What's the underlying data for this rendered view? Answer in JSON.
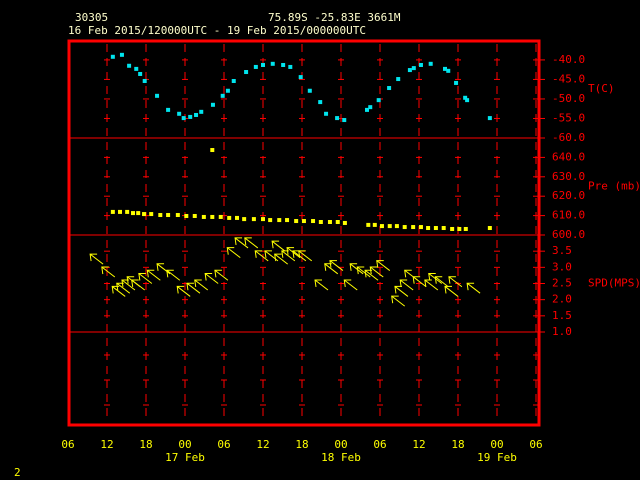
{
  "header": {
    "station": "30305",
    "location": "75.89S  -25.83E  3661M",
    "period": "16 Feb 2015/120000UTC - 19 Feb 2015/000000UTC"
  },
  "page_number": "2",
  "x_axis": {
    "xlim": [
      6,
      78
    ],
    "xticks": [
      {
        "value": 6,
        "label": "06"
      },
      {
        "value": 12,
        "label": "12"
      },
      {
        "value": 18,
        "label": "18"
      },
      {
        "value": 24,
        "label": "00"
      },
      {
        "value": 30,
        "label": "06"
      },
      {
        "value": 36,
        "label": "12"
      },
      {
        "value": 42,
        "label": "18"
      },
      {
        "value": 48,
        "label": "00"
      },
      {
        "value": 54,
        "label": "06"
      },
      {
        "value": 60,
        "label": "12"
      },
      {
        "value": 66,
        "label": "18"
      },
      {
        "value": 72,
        "label": "00"
      },
      {
        "value": 78,
        "label": "06"
      }
    ],
    "date_ticks": [
      {
        "value": 24,
        "label": "17 Feb"
      },
      {
        "value": 48,
        "label": "18 Feb"
      },
      {
        "value": 72,
        "label": "19 Feb"
      }
    ]
  },
  "chart_data": [
    {
      "type": "scatter",
      "y_label": "T(C)",
      "color": "#00e5ee",
      "x": [
        12.9,
        14.3,
        15.4,
        16.5,
        17.1,
        17.8,
        19.7,
        21.4,
        23.1,
        23.8,
        24.8,
        25.7,
        26.5,
        28.3,
        29.8,
        30.6,
        31.5,
        33.4,
        34.9,
        36.0,
        37.5,
        39.1,
        40.2,
        41.8,
        43.2,
        44.8,
        45.7,
        47.4,
        48.5,
        52.0,
        52.5,
        53.8,
        55.4,
        56.8,
        58.6,
        59.2,
        60.3,
        61.8,
        64.0,
        64.5,
        65.7,
        67.1,
        67.4,
        70.9
      ],
      "values": [
        -39.2,
        -38.7,
        -41.5,
        -42.3,
        -43.6,
        -45.4,
        -49.2,
        -52.8,
        -53.8,
        -54.9,
        -54.6,
        -54.1,
        -53.3,
        -51.5,
        -49.2,
        -47.9,
        -45.4,
        -43.1,
        -41.8,
        -41.3,
        -41.0,
        -41.3,
        -41.8,
        -44.4,
        -47.9,
        -50.8,
        -53.8,
        -54.9,
        -55.4,
        -52.8,
        -52.1,
        -50.3,
        -47.2,
        -44.9,
        -42.6,
        -42.1,
        -41.3,
        -41.0,
        -42.3,
        -42.8,
        -45.9,
        -49.7,
        -50.3,
        -54.9
      ],
      "ylim": [
        -60,
        -34.9
      ],
      "yticks": [
        {
          "value": -40,
          "label": "-40.0"
        },
        {
          "value": -45,
          "label": "-45.0"
        },
        {
          "value": -50,
          "label": "-50.0"
        },
        {
          "value": -55,
          "label": "-55.0"
        },
        {
          "value": -60,
          "label": "-60.0"
        }
      ]
    },
    {
      "type": "scatter",
      "y_label": "Pre (mb)",
      "color": "#ffff00",
      "x": [
        12.9,
        14.0,
        15.1,
        16.0,
        16.8,
        17.7,
        18.8,
        20.2,
        21.4,
        22.9,
        24.2,
        25.5,
        26.9,
        28.2,
        28.2,
        29.5,
        30.8,
        32.0,
        33.1,
        34.6,
        36.0,
        37.1,
        38.5,
        39.7,
        41.1,
        42.3,
        43.7,
        44.9,
        46.3,
        47.5,
        48.6,
        52.2,
        53.2,
        54.3,
        55.5,
        56.6,
        57.8,
        59.1,
        60.3,
        61.4,
        62.6,
        63.8,
        65.1,
        66.2,
        67.2,
        70.9
      ],
      "values": [
        611.9,
        611.9,
        611.9,
        611.3,
        611.3,
        610.8,
        610.8,
        610.3,
        610.3,
        610.3,
        609.8,
        609.8,
        609.3,
        609.3,
        643.8,
        609.3,
        608.8,
        608.8,
        608.2,
        608.2,
        608.2,
        607.7,
        607.7,
        607.7,
        607.2,
        607.2,
        607.2,
        606.7,
        606.7,
        606.7,
        606.2,
        605.2,
        605.2,
        604.6,
        604.6,
        604.6,
        604.1,
        604.1,
        604.1,
        603.6,
        603.6,
        603.6,
        603.1,
        603.1,
        603.1,
        603.6
      ],
      "ylim": [
        600,
        650
      ],
      "yticks": [
        {
          "value": 640,
          "label": "640.0"
        },
        {
          "value": 630,
          "label": "630.0"
        },
        {
          "value": 620,
          "label": "620.0"
        },
        {
          "value": 610,
          "label": "610.0"
        },
        {
          "value": 600,
          "label": "600.0"
        }
      ]
    },
    {
      "type": "arrows",
      "y_label": "SPD(MPS)",
      "color": "#ffff00",
      "x": [
        11.4,
        13.2,
        14.8,
        15.5,
        16.3,
        17.1,
        17.8,
        18.9,
        20.2,
        21.7,
        23.2,
        24.8,
        26.3,
        27.5,
        29.1,
        30.6,
        32.5,
        33.7,
        35.2,
        36.8,
        38.3,
        39.4,
        39.8,
        40.9,
        41.7,
        42.6,
        43.5,
        46.0,
        47.5,
        48.3,
        50.5,
        51.4,
        52.5,
        53.7,
        54.5,
        55.5,
        57.8,
        58.3,
        59.1,
        59.8,
        61.1,
        62.9,
        63.5,
        64.5,
        66.0,
        66.6,
        69.4
      ],
      "values": [
        3.1,
        2.7,
        2.1,
        2.2,
        2.3,
        2.4,
        2.3,
        2.5,
        2.6,
        2.8,
        2.6,
        2.1,
        2.2,
        2.3,
        2.5,
        2.6,
        3.3,
        3.6,
        3.6,
        3.2,
        3.2,
        3.5,
        3.1,
        3.2,
        3.3,
        3.2,
        3.2,
        2.3,
        2.8,
        2.9,
        2.3,
        2.8,
        2.7,
        2.6,
        2.7,
        2.9,
        1.8,
        2.1,
        2.3,
        2.6,
        2.4,
        2.3,
        2.5,
        2.4,
        2.1,
        2.4,
        2.2
      ],
      "ylim": [
        1,
        4
      ],
      "yticks": [
        {
          "value": 3.5,
          "label": "3.5"
        },
        {
          "value": 3,
          "label": "3.0"
        },
        {
          "value": 2.5,
          "label": "2.5"
        },
        {
          "value": 2,
          "label": "2.0"
        },
        {
          "value": 1.5,
          "label": "1.5"
        },
        {
          "value": 1,
          "label": "1.0"
        }
      ]
    }
  ]
}
